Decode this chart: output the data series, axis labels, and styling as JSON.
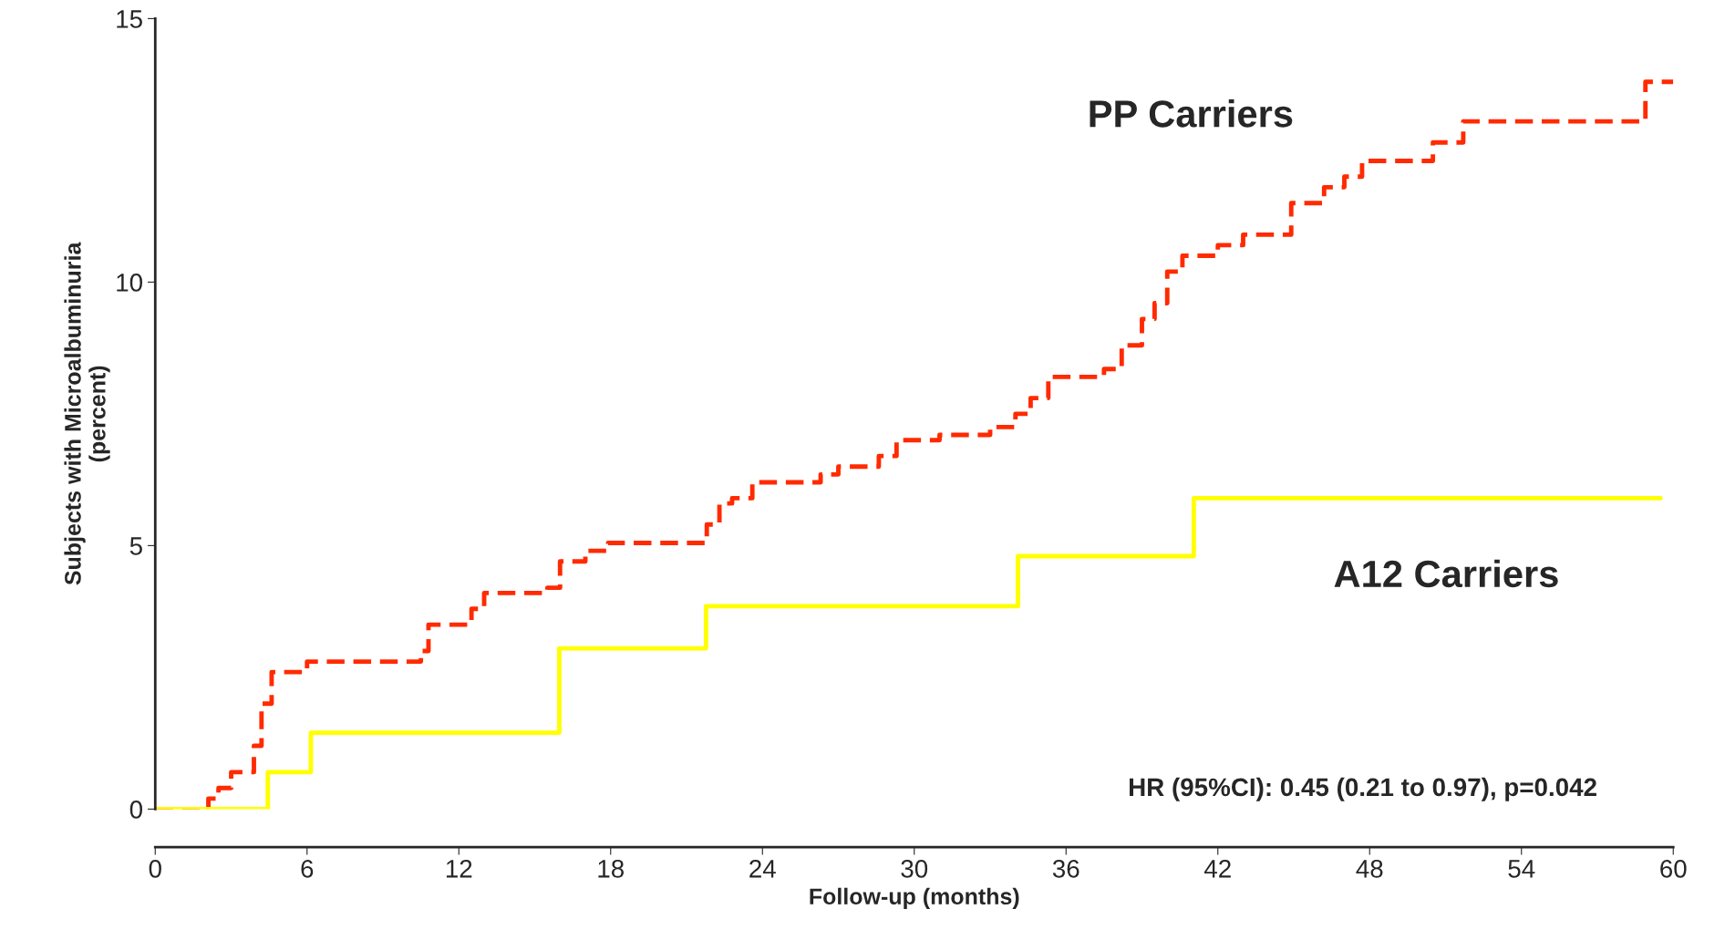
{
  "chart_data": {
    "type": "step",
    "xlabel": "Follow-up (months)",
    "ylabel": "Subjects with Microalbuminuria\n(percent)",
    "xlim": [
      0,
      60
    ],
    "ylim": [
      0,
      15
    ],
    "xticks": [
      0,
      6,
      12,
      18,
      24,
      30,
      36,
      42,
      48,
      54,
      60
    ],
    "yticks": [
      0,
      5,
      10,
      15
    ],
    "grid": false,
    "legend": false,
    "annotations": [
      {
        "text": "HR (95%CI): 0.45 (0.21 to 0.97), p=0.042"
      }
    ],
    "series": [
      {
        "name": "PP Carriers",
        "color": "#ff2a00",
        "line_style": "dashed",
        "x": [
          0,
          2.1,
          2.5,
          3.0,
          3.9,
          4.2,
          4.6,
          6.0,
          10.5,
          10.8,
          12.5,
          13.0,
          15.5,
          16.0,
          17.0,
          17.9,
          21.8,
          22.3,
          22.8,
          23.6,
          26.3,
          27.0,
          28.6,
          29.3,
          31.0,
          33.0,
          34.0,
          34.6,
          35.3,
          37.5,
          38.2,
          39.0,
          39.5,
          40.0,
          40.6,
          42.0,
          43.0,
          44.9,
          46.2,
          47.0,
          47.7,
          50.5,
          51.7,
          58.9,
          60
        ],
        "values": [
          0,
          0.2,
          0.4,
          0.7,
          1.2,
          2.0,
          2.6,
          2.8,
          3.0,
          3.5,
          3.8,
          4.1,
          4.2,
          4.7,
          4.9,
          5.05,
          5.4,
          5.8,
          5.9,
          6.2,
          6.35,
          6.5,
          6.7,
          7.0,
          7.1,
          7.25,
          7.5,
          7.8,
          8.2,
          8.35,
          8.8,
          9.3,
          9.6,
          10.2,
          10.5,
          10.7,
          10.9,
          11.5,
          11.8,
          12.0,
          12.3,
          12.65,
          13.05,
          13.8,
          13.8
        ]
      },
      {
        "name": "A12 Carriers",
        "color": "#ffff00",
        "line_style": "solid",
        "x": [
          0,
          4.45,
          6.15,
          15.97,
          21.77,
          34.1,
          41.05,
          59.5
        ],
        "values": [
          0,
          0.7,
          1.45,
          3.05,
          3.85,
          4.8,
          5.9,
          5.9
        ]
      }
    ]
  }
}
